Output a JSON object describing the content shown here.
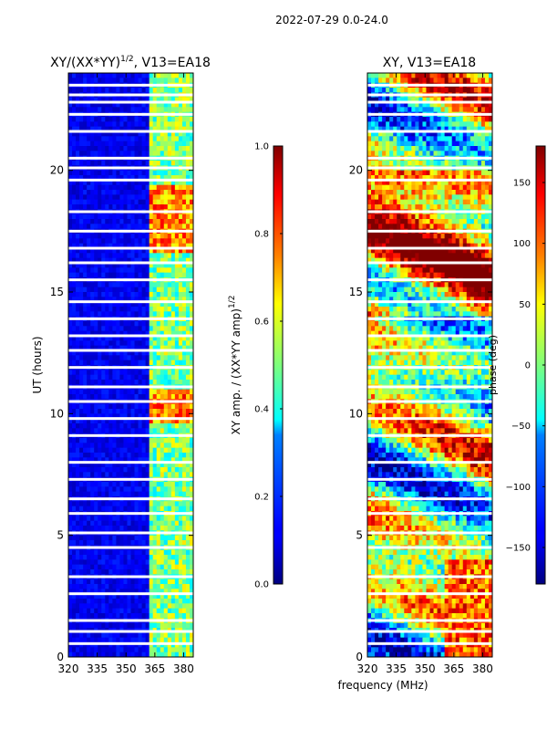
{
  "figure_title": "2022-07-29 0.0-24.0",
  "shared_xlabel": "frequency (MHz)",
  "chart_data": [
    {
      "type": "heatmap",
      "title_text": "XY/(XX*YY)",
      "title_superscript": "1/2",
      "title_suffix": ", V13=EA18",
      "xlabel": "",
      "ylabel": "UT (hours)",
      "xlim": [
        320,
        385
      ],
      "ylim": [
        0,
        24
      ],
      "x_ticks": [
        "320",
        "335",
        "350",
        "365",
        "380"
      ],
      "x_tick_values": [
        320,
        335,
        350,
        365,
        380
      ],
      "y_ticks": [
        "0",
        "5",
        "10",
        "15",
        "20"
      ],
      "y_tick_values": [
        0,
        5,
        10,
        15,
        20
      ],
      "value_range": [
        0.0,
        1.0
      ],
      "flagged_ut_rows": [
        0.55,
        1.05,
        1.5,
        2.6,
        3.3,
        4.5,
        5.1,
        5.9,
        6.5,
        7.3,
        8.0,
        9.1,
        9.8,
        10.5,
        11.1,
        11.9,
        12.6,
        13.2,
        13.9,
        14.6,
        15.5,
        16.2,
        16.8,
        17.5,
        18.3,
        19.6,
        20.1,
        20.5,
        21.6,
        22.3,
        22.8,
        23.1,
        23.5
      ],
      "colorbar": {
        "label_text": "XY amp. / (XX*YY amp)",
        "label_superscript": "1/2",
        "ticks": [
          "0.0",
          "0.2",
          "0.4",
          "0.6",
          "0.8",
          "1.0"
        ],
        "tick_values": [
          0.0,
          0.2,
          0.4,
          0.6,
          0.8,
          1.0
        ],
        "range": [
          0.0,
          1.0
        ]
      }
    },
    {
      "type": "heatmap",
      "title_text": "XY, V13=EA18",
      "xlabel": "frequency (MHz)",
      "ylabel": "",
      "xlim": [
        320,
        385
      ],
      "ylim": [
        0,
        24
      ],
      "x_ticks": [
        "320",
        "335",
        "350",
        "365",
        "380"
      ],
      "x_tick_values": [
        320,
        335,
        350,
        365,
        380
      ],
      "y_ticks": [
        "0",
        "5",
        "10",
        "15",
        "20"
      ],
      "y_tick_values": [
        0,
        5,
        10,
        15,
        20
      ],
      "value_range": [
        -180,
        180
      ],
      "flagged_ut_rows": [
        0.55,
        1.05,
        1.5,
        2.6,
        3.3,
        4.5,
        5.1,
        5.9,
        6.5,
        7.3,
        8.0,
        9.1,
        9.8,
        10.5,
        11.1,
        11.9,
        12.6,
        13.2,
        13.9,
        14.6,
        15.5,
        16.2,
        16.8,
        17.5,
        18.3,
        19.6,
        20.1,
        20.5,
        21.6,
        22.3,
        22.8,
        23.1,
        23.5
      ],
      "colorbar": {
        "label_text": "phase (deg)",
        "ticks": [
          "−150",
          "−100",
          "−50",
          "0",
          "50",
          "100",
          "150"
        ],
        "tick_values": [
          -150,
          -100,
          -50,
          0,
          50,
          100,
          150
        ],
        "range": [
          -180,
          180
        ]
      }
    }
  ]
}
